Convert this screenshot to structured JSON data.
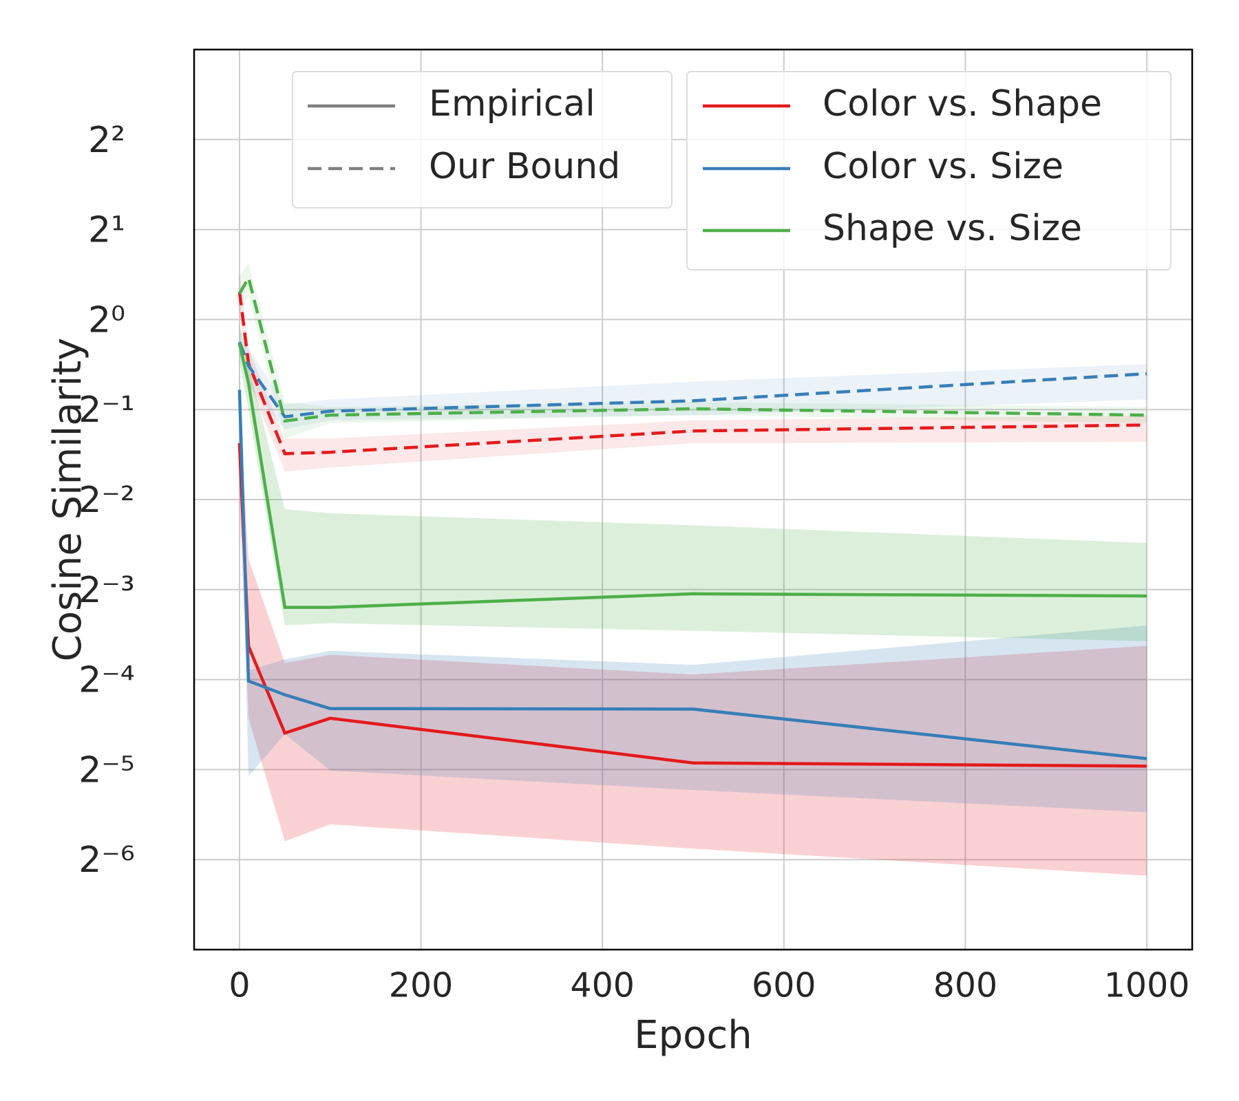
{
  "chart_data": {
    "type": "line",
    "xlabel": "Epoch",
    "ylabel": "Cosine Similarity",
    "x": [
      0,
      10,
      50,
      100,
      500,
      1000
    ],
    "xlim": [
      -50,
      1050
    ],
    "xticks": [
      0,
      200,
      400,
      600,
      800,
      1000
    ],
    "ylim": [
      0.0078125,
      8
    ],
    "log_base": 2,
    "yticks": [
      {
        "value": 4,
        "label": "2²"
      },
      {
        "value": 2,
        "label": "2¹"
      },
      {
        "value": 1,
        "label": "2⁰"
      },
      {
        "value": 0.5,
        "label": "2⁻¹"
      },
      {
        "value": 0.25,
        "label": "2⁻²"
      },
      {
        "value": 0.125,
        "label": "2⁻³"
      },
      {
        "value": 0.0625,
        "label": "2⁻⁴"
      },
      {
        "value": 0.03125,
        "label": "2⁻⁵"
      },
      {
        "value": 0.015625,
        "label": "2⁻⁶"
      }
    ],
    "grid": true,
    "style_legend": [
      {
        "name": "Empirical",
        "dash": "solid"
      },
      {
        "name": "Our Bound",
        "dash": "dashed"
      }
    ],
    "series": [
      {
        "name": "Color vs. Shape",
        "color": "#e41a1c",
        "values": [
          0.386,
          0.0807,
          0.0414,
          0.0464,
          0.0329,
          0.0321
        ],
        "upper": [
          0.5,
          0.158,
          0.071,
          0.0757,
          0.065,
          0.081
        ],
        "lower": [
          0.25,
          0.0464,
          0.018,
          0.0205,
          0.017,
          0.0138
        ],
        "bound": {
          "values": [
            1.24,
            0.713,
            0.356,
            0.36,
            0.424,
            0.444
          ],
          "upper": [
            1.45,
            0.8,
            0.4,
            0.4,
            0.46,
            0.478
          ],
          "lower": [
            1.05,
            0.62,
            0.31,
            0.32,
            0.386,
            0.39
          ]
        }
      },
      {
        "name": "Color vs. Size",
        "color": "#377eb8",
        "values": [
          0.582,
          0.0618,
          0.0556,
          0.05,
          0.0498,
          0.034
        ],
        "upper": [
          0.7,
          0.067,
          0.073,
          0.078,
          0.07,
          0.0948
        ],
        "lower": [
          0.48,
          0.0297,
          0.0411,
          0.031,
          0.0267,
          0.0225
        ],
        "bound": {
          "values": [
            0.84,
            0.7,
            0.473,
            0.494,
            0.535,
            0.659
          ],
          "upper": [
            0.95,
            0.8,
            0.52,
            0.54,
            0.62,
            0.71
          ],
          "lower": [
            0.75,
            0.6,
            0.43,
            0.46,
            0.478,
            0.54
          ]
        }
      },
      {
        "name": "Shape vs. Size",
        "color": "#4daf4a",
        "values": [
          0.832,
          0.611,
          0.109,
          0.109,
          0.121,
          0.119
        ],
        "upper": [
          0.95,
          0.7,
          0.232,
          0.225,
          0.205,
          0.179
        ],
        "lower": [
          0.72,
          0.5,
          0.095,
          0.0965,
          0.091,
          0.084
        ],
        "bound": {
          "values": [
            1.22,
            1.38,
            0.458,
            0.479,
            0.503,
            0.479
          ],
          "upper": [
            1.4,
            1.55,
            0.53,
            0.51,
            0.53,
            0.51
          ],
          "lower": [
            1.05,
            1.2,
            0.4,
            0.45,
            0.48,
            0.45
          ]
        }
      }
    ]
  }
}
